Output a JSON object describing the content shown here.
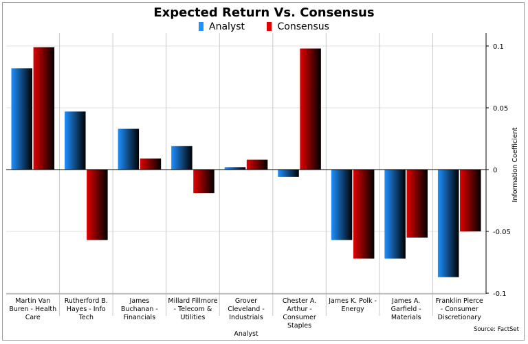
{
  "chart_data": {
    "type": "bar",
    "title": "Expected Return Vs. Consensus",
    "xlabel": "Analyst",
    "ylabel": "Information Coefficient",
    "source": "Source: FactSet",
    "ylim": [
      -0.1,
      0.1
    ],
    "yticks": [
      0.1,
      0.05,
      0,
      -0.05,
      -0.1
    ],
    "ytick_labels": [
      "0.1",
      "0.05",
      "0",
      "-0.05",
      "-0.1"
    ],
    "grid": true,
    "legend_position": "top",
    "categories": [
      [
        "Martin Van",
        "Buren - Health",
        "Care"
      ],
      [
        "Rutherford B.",
        "Hayes - Info",
        "Tech"
      ],
      [
        "James",
        "Buchanan -",
        "Financials"
      ],
      [
        "Millard Fillmore",
        "- Telecom &",
        "Utilities"
      ],
      [
        "Grover",
        "Cleveland -",
        "Industrials"
      ],
      [
        "Chester A.",
        "Arthur -",
        "Consumer",
        "Staples"
      ],
      [
        "James K. Polk -",
        "Energy"
      ],
      [
        "James A.",
        "Garfield -",
        "Materials"
      ],
      [
        "Franklin Pierce",
        "- Consumer",
        "Discretionary"
      ]
    ],
    "series": [
      {
        "name": "Analyst",
        "color": "#1e90ff",
        "values": [
          0.082,
          0.047,
          0.033,
          0.019,
          0.002,
          -0.006,
          -0.057,
          -0.072,
          -0.087
        ]
      },
      {
        "name": "Consensus",
        "color": "#e00000",
        "values": [
          0.099,
          -0.057,
          0.009,
          -0.019,
          0.008,
          0.098,
          -0.072,
          -0.055,
          -0.05
        ]
      }
    ]
  }
}
